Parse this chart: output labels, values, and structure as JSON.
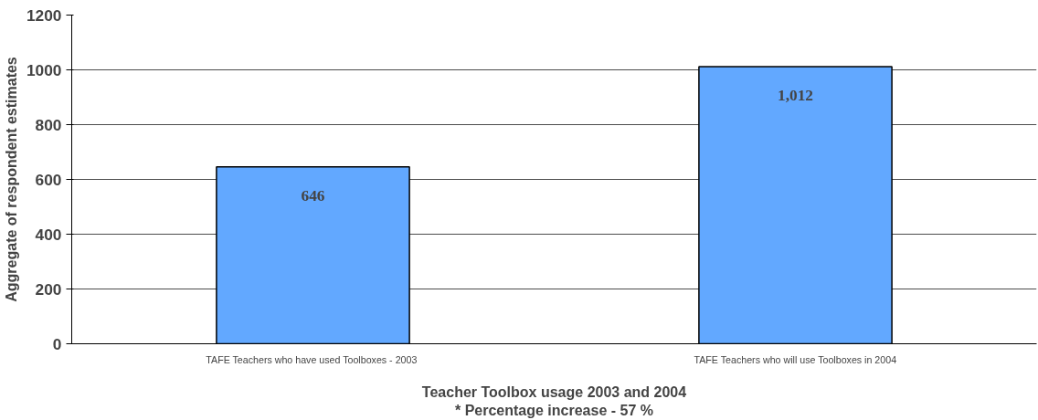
{
  "chart_data": {
    "type": "bar",
    "xlabel": "Teacher Toolbox usage 2003 and 2004\n* Percentage increase - 57 %",
    "ylabel": "Aggregate of respondent estimates",
    "categories": [
      "TAFE Teachers who have used Toolboxes -  2003",
      "TAFE Teachers who will use Toolboxes in 2004"
    ],
    "values": [
      646,
      1012
    ],
    "value_labels": [
      "646",
      "1,012"
    ],
    "color": "#62a8ff",
    "ylim": [
      0,
      1200
    ],
    "yticks": [
      0,
      200,
      400,
      600,
      800,
      1000,
      1200
    ],
    "grid": "y"
  }
}
